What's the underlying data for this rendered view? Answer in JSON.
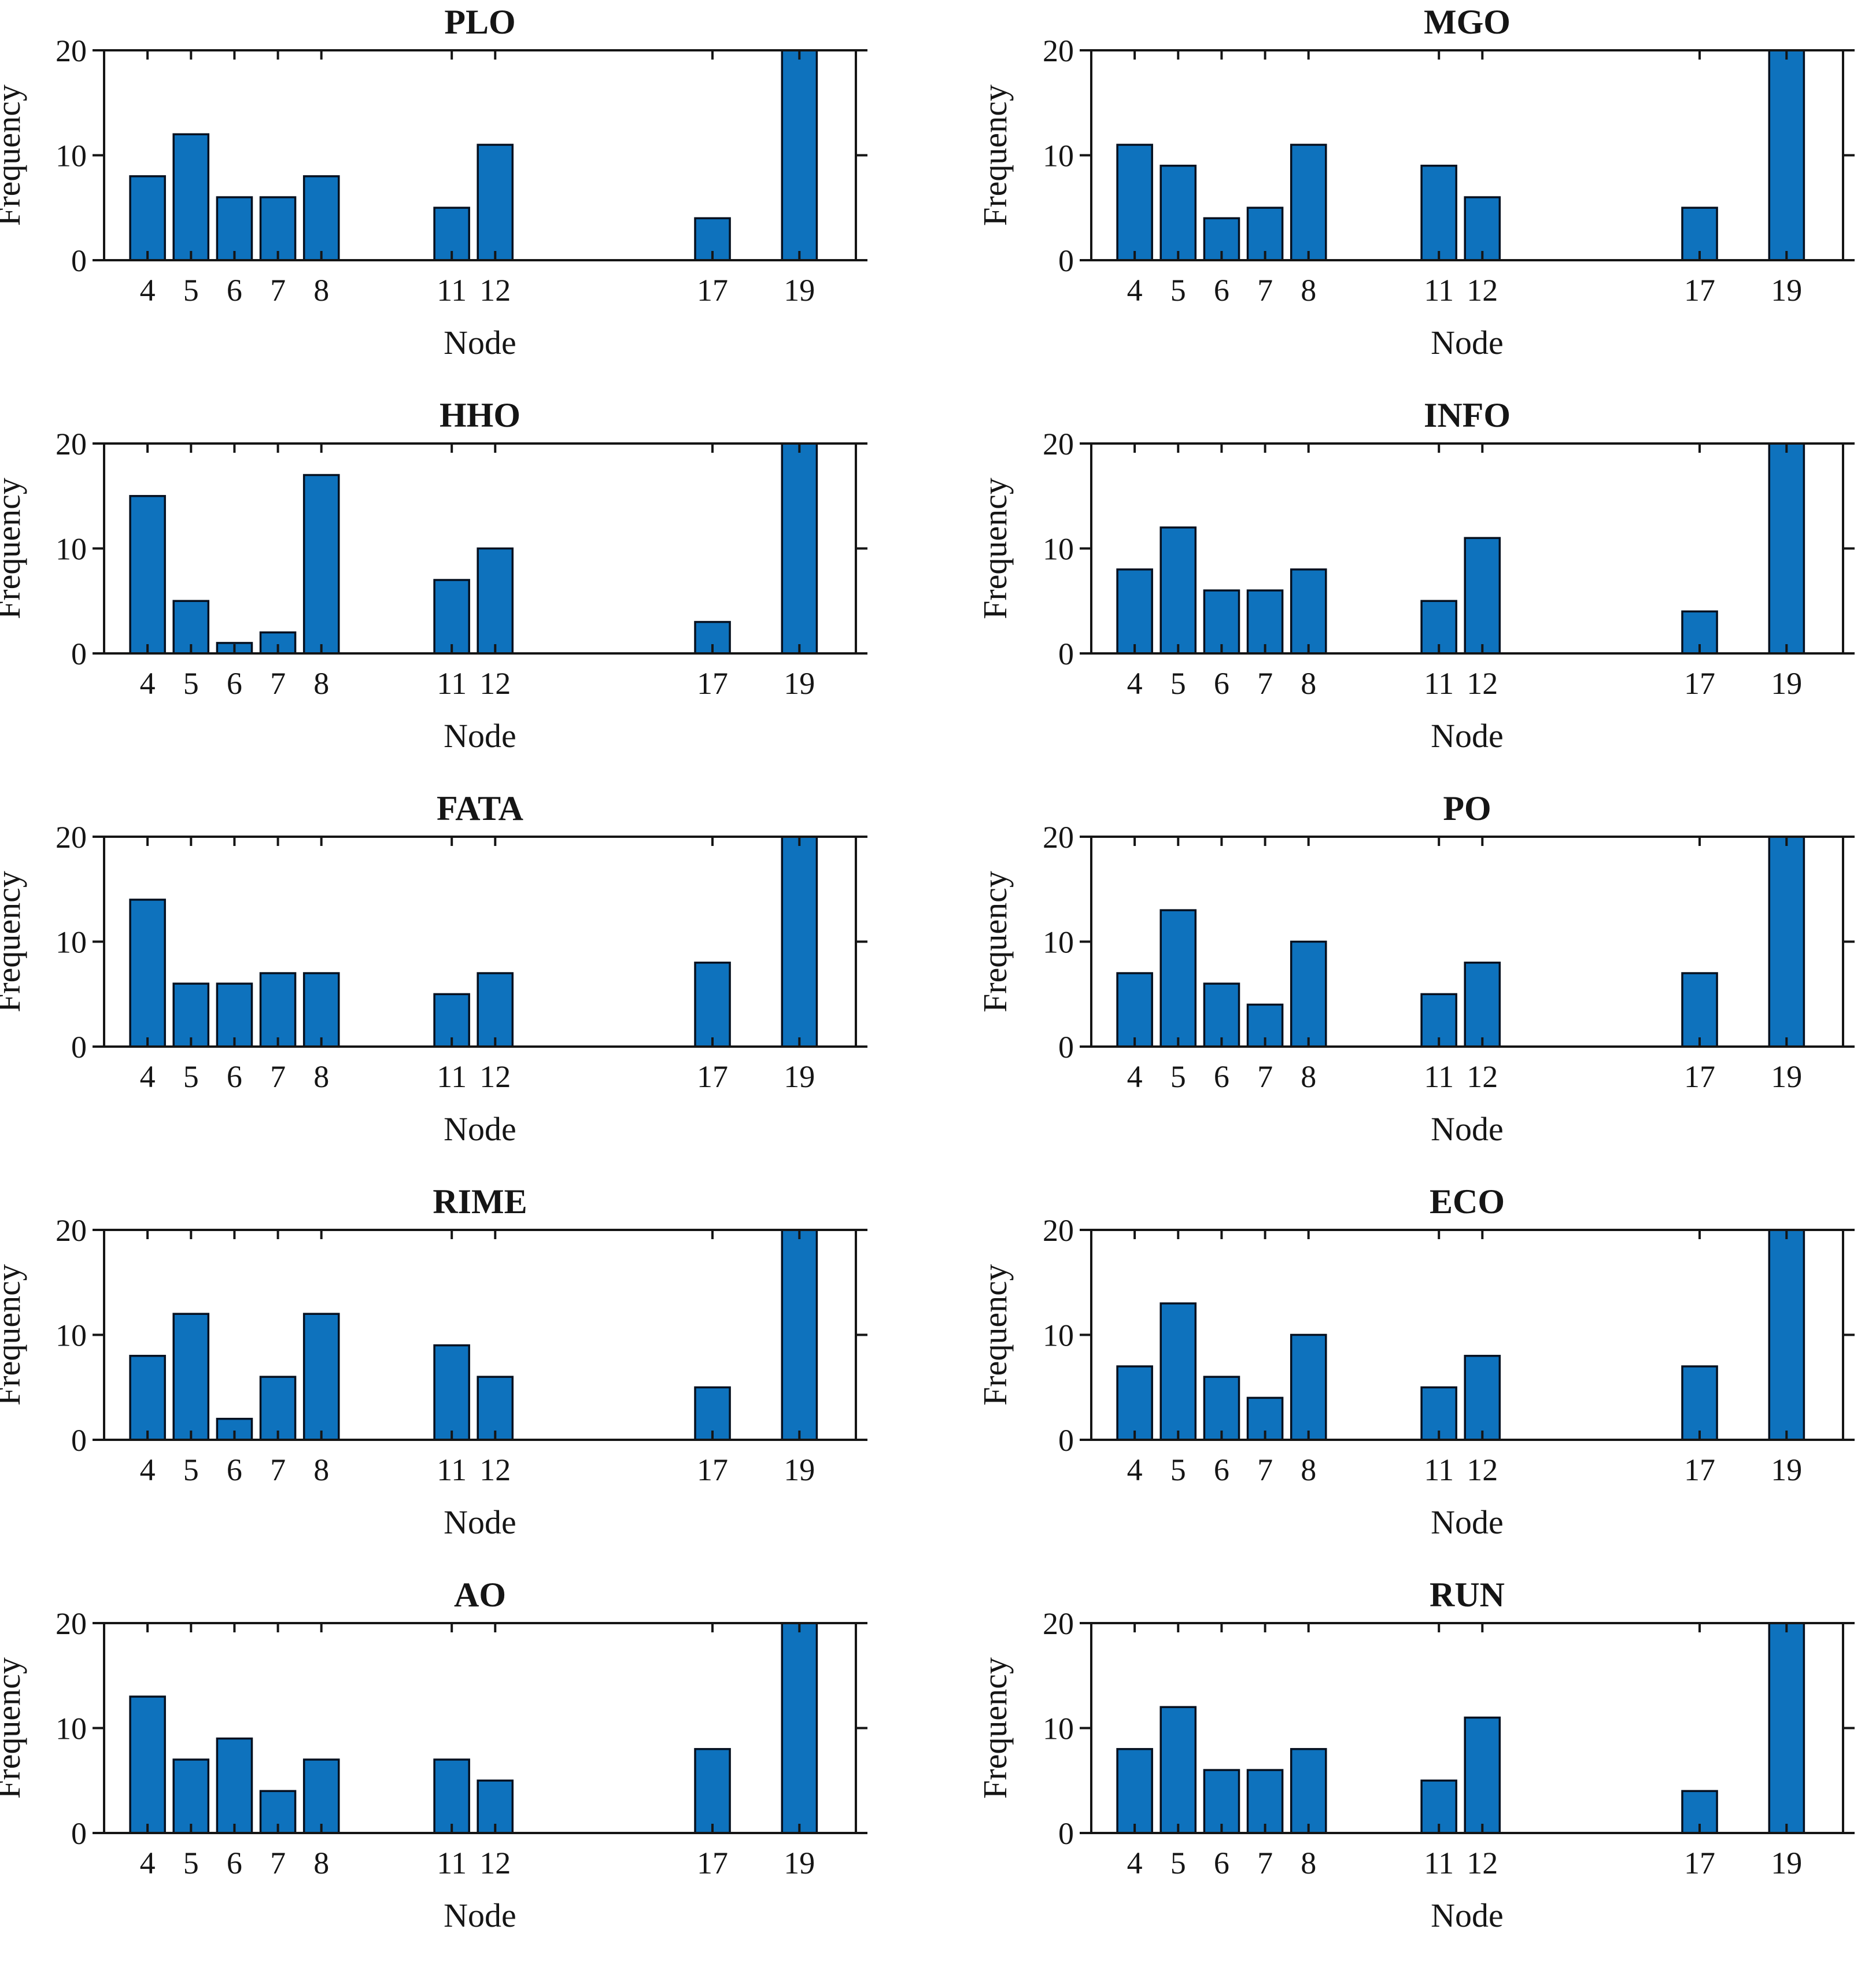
{
  "chart_data": {
    "type": "bar",
    "categories": [
      4,
      5,
      6,
      7,
      8,
      11,
      12,
      17,
      19
    ],
    "xlabel": "Node",
    "ylabel": "Frequency",
    "ylim": [
      0,
      20
    ],
    "yticks": [
      0,
      10,
      20
    ],
    "xlim": [
      3,
      20.3
    ],
    "grid": false,
    "legend": "none",
    "bar_color": "#0e72bd",
    "bar_edge_color": "#06101f",
    "axis_color": "#151515",
    "background_color": "#ffffff",
    "series": [
      {
        "name": "PLO",
        "values": [
          8,
          12,
          6,
          6,
          8,
          5,
          11,
          4,
          20
        ]
      },
      {
        "name": "MGO",
        "values": [
          11,
          9,
          4,
          5,
          11,
          9,
          6,
          5,
          20
        ]
      },
      {
        "name": "HHO",
        "values": [
          15,
          5,
          1,
          2,
          17,
          7,
          10,
          3,
          20
        ]
      },
      {
        "name": "INFO",
        "values": [
          8,
          12,
          6,
          6,
          8,
          5,
          11,
          4,
          20
        ]
      },
      {
        "name": "FATA",
        "values": [
          14,
          6,
          6,
          7,
          7,
          5,
          7,
          8,
          20
        ]
      },
      {
        "name": "PO",
        "values": [
          7,
          13,
          6,
          4,
          10,
          5,
          8,
          7,
          20
        ]
      },
      {
        "name": "RIME",
        "values": [
          8,
          12,
          2,
          6,
          12,
          9,
          6,
          5,
          20
        ]
      },
      {
        "name": "ECO",
        "values": [
          7,
          13,
          6,
          4,
          10,
          5,
          8,
          7,
          20
        ]
      },
      {
        "name": "AO",
        "values": [
          13,
          7,
          9,
          4,
          7,
          7,
          5,
          8,
          20
        ]
      },
      {
        "name": "RUN",
        "values": [
          8,
          12,
          6,
          6,
          8,
          5,
          11,
          4,
          20
        ]
      }
    ]
  }
}
